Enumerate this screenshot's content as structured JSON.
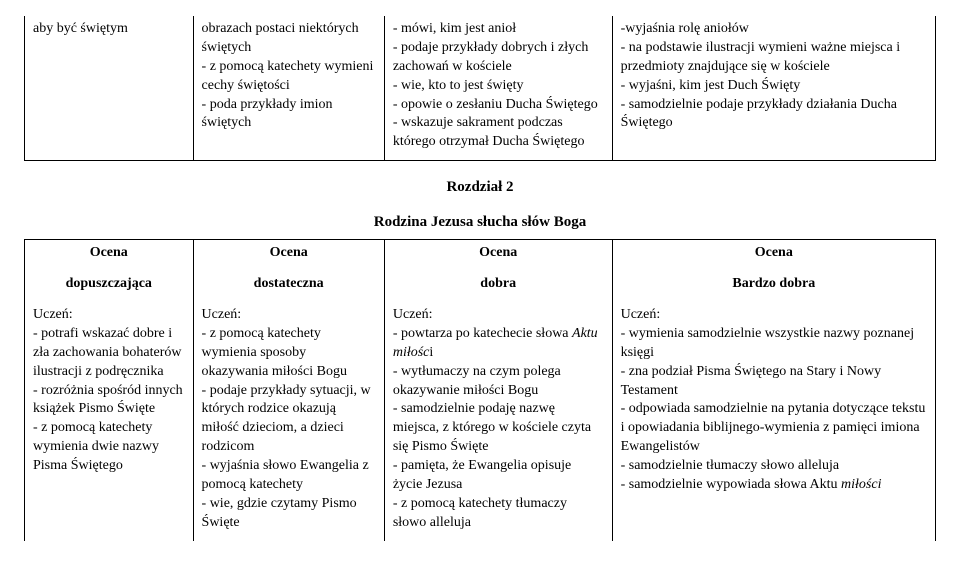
{
  "top_table": {
    "cells": [
      "aby być świętym",
      "obrazach postaci niektórych świętych\n- z pomocą katechety wymieni cechy świętości\n- poda przykłady imion świętych",
      "- mówi, kim jest anioł\n- podaje przykłady dobrych i złych zachowań w kościele\n- wie, kto to jest święty\n- opowie o zesłaniu Ducha Świętego\n- wskazuje sakrament podczas którego otrzymał Ducha Świętego",
      "-wyjaśnia rolę aniołów\n- na podstawie ilustracji wymieni ważne miejsca i przedmioty znajdujące się w kościele\n- wyjaśni, kim jest Duch Święty\n- samodzielnie podaje przykłady działania Ducha Świętego"
    ]
  },
  "section": {
    "chapter": "Rozdział 2",
    "title": "Rodzina Jezusa słucha słów Boga"
  },
  "header": {
    "ocena": "Ocena",
    "labels": [
      "dopuszczająca",
      "dostateczna",
      "dobra",
      "Bardzo dobra"
    ]
  },
  "rows": {
    "c1": "Uczeń:\n- potrafi wskazać dobre i zła zachowania bohaterów ilustracji z podręcznika\n- rozróżnia spośród innych książek Pismo Święte\n- z pomocą katechety wymienia dwie nazwy Pisma Świętego",
    "c2": "Uczeń:\n- z pomocą katechety wymienia sposoby okazywania miłości Bogu\n- podaje przykłady sytuacji, w których rodzice okazują miłość dzieciom, a dzieci rodzicom\n- wyjaśnia słowo Ewangelia z pomocą katechety\n- wie, gdzie czytamy Pismo Święte",
    "c3_a": "Uczeń:\n- powtarza po katechecie słowa ",
    "c3_it1": "Aktu miłośc",
    "c3_b": "i\n- wytłumaczy na czym polega okazywanie miłości Bogu\n- samodzielnie podaję nazwę miejsca, z którego w kościele czyta się Pismo Święte\n- pamięta, że Ewangelia opisuje życie Jezusa\n- z pomocą katechety tłumaczy słowo alleluja",
    "c4_a": "Uczeń:\n- wymienia samodzielnie wszystkie nazwy poznanej księgi\n- zna podział Pisma Świętego na Stary i Nowy Testament\n- odpowiada samodzielnie na pytania dotyczące tekstu i opowiadania biblijnego-wymienia z pamięci imiona Ewangelistów\n- samodzielnie tłumaczy słowo alleluja\n- samodzielnie wypowiada słowa Aktu ",
    "c4_it": "miłości"
  }
}
